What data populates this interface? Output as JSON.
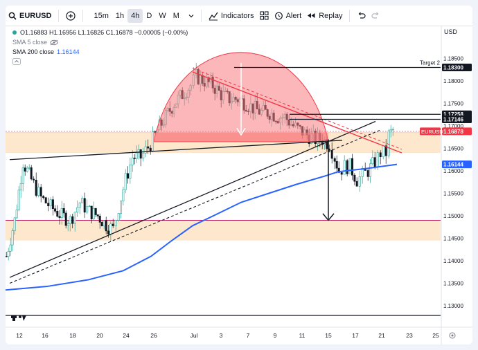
{
  "toolbar": {
    "symbol": "EURUSD",
    "timeframes": [
      "15m",
      "1h",
      "4h",
      "D",
      "W",
      "M"
    ],
    "active_timeframe": "4h",
    "indicators_label": "Indicators",
    "alert_label": "Alert",
    "replay_label": "Replay"
  },
  "legend": {
    "ohlc": "O1.16883 H1.16956 L1.16826 C1.16878 −0.00005 (−0.00%)",
    "sma5": "SMA 5 close",
    "sma200_label": "SMA 200 close",
    "sma200_value": "1.16144"
  },
  "currency": "USD",
  "price_axis": {
    "ticks": [
      "1.18500",
      "1.18000",
      "1.17500",
      "1.17000",
      "1.16500",
      "1.16000",
      "1.15500",
      "1.15000",
      "1.14500",
      "1.14000",
      "1.13500",
      "1.13000"
    ],
    "labels": [
      {
        "text": "1.18300",
        "price": 1.183,
        "style": "black"
      },
      {
        "text": "1.17258",
        "price": 1.17258,
        "style": "black"
      },
      {
        "text": "1.17146",
        "price": 1.17146,
        "style": "black"
      },
      {
        "text": "1.16878",
        "price": 1.16878,
        "style": "pink"
      },
      {
        "text": "1.16144",
        "price": 1.16144,
        "style": "blue"
      }
    ],
    "symbol_tag": "EURUSD",
    "target_label": "Target 2"
  },
  "time_axis": {
    "ticks": [
      "12",
      "16",
      "18",
      "20",
      "24",
      "26",
      "Jul",
      "3",
      "7",
      "9",
      "11",
      "15",
      "17",
      "21",
      "23",
      "25"
    ]
  },
  "chart_data": {
    "type": "candlestick",
    "symbol": "EURUSD",
    "timeframe": "4h",
    "ylim": [
      1.128,
      1.186
    ],
    "series": [
      {
        "name": "SMA 200 close",
        "color": "#2962ff",
        "last": 1.16144
      }
    ],
    "levels": [
      1.183,
      1.17258,
      1.17146,
      1.149,
      1.1487
    ],
    "zones": [
      {
        "from": 1.164,
        "to": 1.1685,
        "color": "#fde4c5"
      },
      {
        "from": 1.1445,
        "to": 1.1488,
        "color": "#fde4c5"
      }
    ],
    "colors": {
      "up": "#26a69a",
      "down": "#131722",
      "sma": "#2962ff",
      "pattern": "#f77c80",
      "last": "#f23645"
    }
  }
}
